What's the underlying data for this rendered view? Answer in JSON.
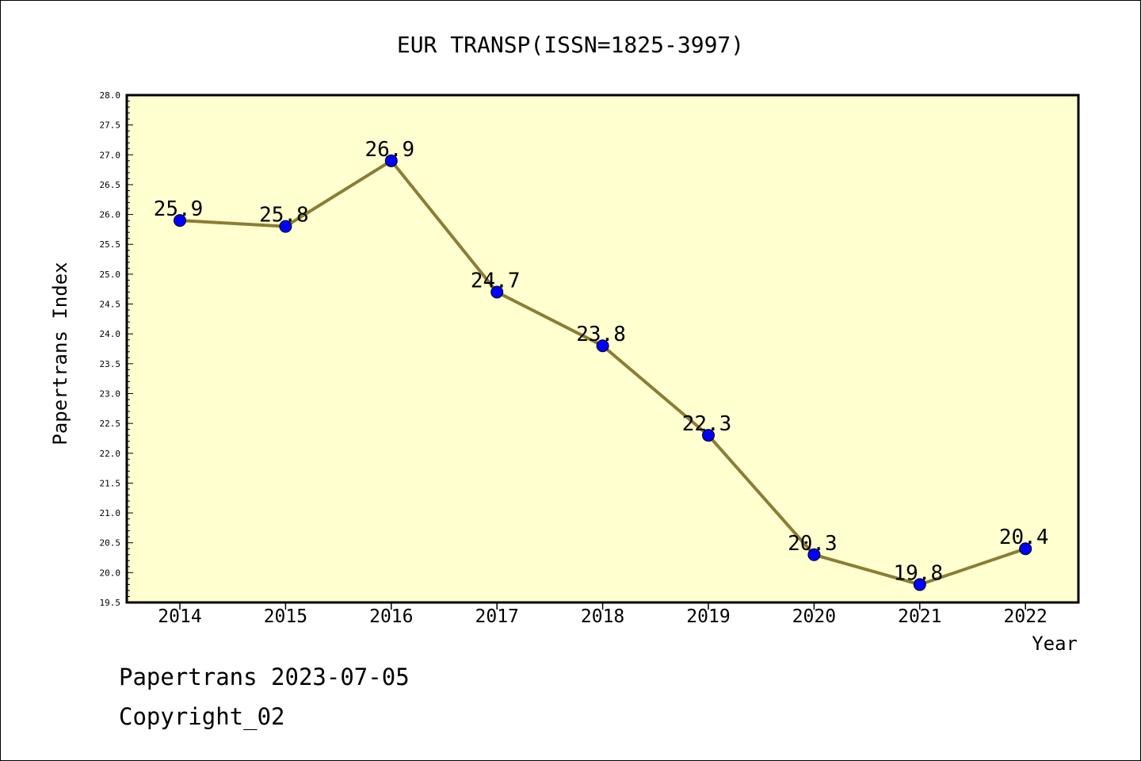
{
  "chart_data": {
    "type": "line",
    "title": "EUR TRANSP(ISSN=1825-3997)",
    "xlabel": "Year",
    "ylabel": "Papertrans Index",
    "categories": [
      "2014",
      "2015",
      "2016",
      "2017",
      "2018",
      "2019",
      "2020",
      "2021",
      "2022"
    ],
    "values": [
      25.9,
      25.8,
      26.9,
      24.7,
      23.8,
      22.3,
      20.3,
      19.8,
      20.4
    ],
    "data_labels": [
      "25.9",
      "25.8",
      "26.9",
      "24.7",
      "23.8",
      "22.3",
      "20.3",
      "19.8",
      "20.4"
    ],
    "ylim": [
      19.5,
      28.0
    ],
    "yticks": [
      "19.5",
      "20.0",
      "20.5",
      "21.0",
      "21.5",
      "22.0",
      "22.5",
      "23.0",
      "23.5",
      "24.0",
      "24.5",
      "25.0",
      "25.5",
      "26.0",
      "26.5",
      "27.0",
      "27.5",
      "28.0"
    ],
    "grid": false,
    "colors": {
      "plot_background": "#ffffd0",
      "line": "#8b7d35",
      "marker": "#0000ff"
    }
  },
  "footer": {
    "line1": "Papertrans 2023-07-05",
    "line2": "Copyright_02"
  }
}
